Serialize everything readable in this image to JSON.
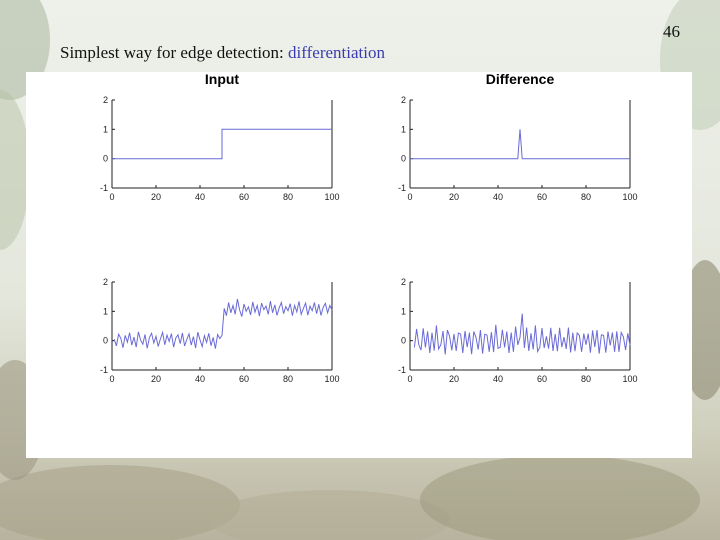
{
  "slide": {
    "number": "46",
    "title_prefix": "Simplest way for edge detection: ",
    "title_highlight": "differentiation"
  },
  "colors": {
    "series": "#6a6ad8",
    "title_highlight": "#3b3bb0"
  },
  "chart_data": [
    {
      "id": "input-clean",
      "type": "line",
      "title": "Input",
      "xlim": [
        0,
        100
      ],
      "ylim": [
        -1,
        2
      ],
      "xticks": [
        0,
        20,
        40,
        60,
        80,
        100
      ],
      "yticks": [
        -1,
        0,
        1,
        2
      ],
      "series": [
        {
          "x": [
            0,
            50,
            50,
            100
          ],
          "y": [
            0,
            0,
            1,
            1
          ]
        }
      ]
    },
    {
      "id": "difference-clean",
      "type": "line",
      "title": "Difference",
      "xlim": [
        0,
        100
      ],
      "ylim": [
        -1,
        2
      ],
      "xticks": [
        0,
        20,
        40,
        60,
        80,
        100
      ],
      "yticks": [
        -1,
        0,
        1,
        2
      ],
      "series": [
        {
          "x": [
            0,
            49,
            50,
            51,
            100
          ],
          "y": [
            0,
            0,
            1,
            0,
            0
          ]
        }
      ]
    },
    {
      "id": "input-noisy",
      "type": "line",
      "title": "",
      "xlim": [
        0,
        100
      ],
      "ylim": [
        -1,
        2
      ],
      "xticks": [
        0,
        20,
        40,
        60,
        80,
        100
      ],
      "yticks": [
        -1,
        0,
        1,
        2
      ],
      "series": [
        {
          "x": [
            1,
            2,
            3,
            4,
            5,
            6,
            7,
            8,
            9,
            10,
            11,
            12,
            13,
            14,
            15,
            16,
            17,
            18,
            19,
            20,
            21,
            22,
            23,
            24,
            25,
            26,
            27,
            28,
            29,
            30,
            31,
            32,
            33,
            34,
            35,
            36,
            37,
            38,
            39,
            40,
            41,
            42,
            43,
            44,
            45,
            46,
            47,
            48,
            49,
            50,
            51,
            52,
            53,
            54,
            55,
            56,
            57,
            58,
            59,
            60,
            61,
            62,
            63,
            64,
            65,
            66,
            67,
            68,
            69,
            70,
            71,
            72,
            73,
            74,
            75,
            76,
            77,
            78,
            79,
            80,
            81,
            82,
            83,
            84,
            85,
            86,
            87,
            88,
            89,
            90,
            91,
            92,
            93,
            94,
            95,
            96,
            97,
            98,
            99,
            100
          ],
          "y": [
            0.05,
            -0.18,
            0.22,
            0.08,
            -0.24,
            0.18,
            -0.05,
            0.27,
            -0.15,
            0.12,
            -0.22,
            0.3,
            0.02,
            -0.12,
            0.21,
            -0.26,
            0.1,
            0.25,
            -0.08,
            0.15,
            -0.2,
            0.06,
            0.28,
            -0.14,
            0.19,
            -0.03,
            0.24,
            -0.22,
            0.09,
            0.2,
            -0.1,
            0.26,
            -0.18,
            0.04,
            0.23,
            -0.15,
            0.14,
            -0.25,
            0.29,
            0.03,
            -0.2,
            0.17,
            -0.06,
            0.25,
            -0.17,
            0.11,
            -0.27,
            0.21,
            0.07,
            0.18,
            1.1,
            0.85,
            1.3,
            0.95,
            1.2,
            0.9,
            1.42,
            1.05,
            0.82,
            1.25,
            1.0,
            1.15,
            0.88,
            1.32,
            0.97,
            1.2,
            0.84,
            1.28,
            1.06,
            1.18,
            0.9,
            1.35,
            0.95,
            1.22,
            0.86,
            1.12,
            1.3,
            0.92,
            1.16,
            1.02,
            1.26,
            0.85,
            1.2,
            0.98,
            1.34,
            0.9,
            1.1,
            1.28,
            0.87,
            1.18,
            1.02,
            1.3,
            0.92,
            1.24,
            0.86,
            1.14,
            1.27,
            0.95,
            1.2,
            1.05
          ]
        }
      ]
    },
    {
      "id": "difference-noisy",
      "type": "line",
      "title": "",
      "xlim": [
        0,
        100
      ],
      "ylim": [
        -1,
        2
      ],
      "xticks": [
        0,
        20,
        40,
        60,
        80,
        100
      ],
      "yticks": [
        -1,
        0,
        1,
        2
      ],
      "series": [
        {
          "x": [
            2,
            3,
            4,
            5,
            6,
            7,
            8,
            9,
            10,
            11,
            12,
            13,
            14,
            15,
            16,
            17,
            18,
            19,
            20,
            21,
            22,
            23,
            24,
            25,
            26,
            27,
            28,
            29,
            30,
            31,
            32,
            33,
            34,
            35,
            36,
            37,
            38,
            39,
            40,
            41,
            42,
            43,
            44,
            45,
            46,
            47,
            48,
            49,
            50,
            51,
            52,
            53,
            54,
            55,
            56,
            57,
            58,
            59,
            60,
            61,
            62,
            63,
            64,
            65,
            66,
            67,
            68,
            69,
            70,
            71,
            72,
            73,
            74,
            75,
            76,
            77,
            78,
            79,
            80,
            81,
            82,
            83,
            84,
            85,
            86,
            87,
            88,
            89,
            90,
            91,
            92,
            93,
            94,
            95,
            96,
            97,
            98,
            99,
            100
          ],
          "y": [
            -0.23,
            0.4,
            -0.14,
            -0.32,
            0.42,
            -0.23,
            0.32,
            -0.42,
            0.27,
            -0.34,
            0.52,
            -0.28,
            -0.14,
            0.33,
            -0.47,
            0.36,
            0.15,
            -0.33,
            0.23,
            -0.35,
            0.26,
            0.22,
            -0.42,
            0.33,
            -0.22,
            0.27,
            -0.46,
            0.31,
            0.11,
            -0.3,
            0.36,
            -0.44,
            0.22,
            0.19,
            -0.38,
            0.29,
            -0.39,
            0.54,
            -0.26,
            -0.23,
            0.37,
            -0.23,
            0.31,
            -0.42,
            0.28,
            -0.38,
            0.48,
            -0.14,
            0.11,
            0.92,
            -0.25,
            0.45,
            -0.35,
            0.25,
            -0.3,
            0.52,
            -0.37,
            -0.23,
            0.43,
            -0.25,
            0.15,
            -0.27,
            0.44,
            -0.35,
            0.23,
            -0.36,
            0.44,
            -0.22,
            0.12,
            -0.28,
            0.45,
            -0.4,
            0.27,
            -0.36,
            0.26,
            0.18,
            -0.38,
            0.24,
            -0.14,
            0.24,
            -0.41,
            0.35,
            -0.22,
            0.36,
            -0.44,
            0.2,
            0.18,
            -0.41,
            0.31,
            -0.16,
            0.28,
            -0.38,
            0.32,
            -0.38,
            0.28,
            0.13,
            -0.32,
            0.25,
            -0.15
          ]
        }
      ]
    }
  ]
}
